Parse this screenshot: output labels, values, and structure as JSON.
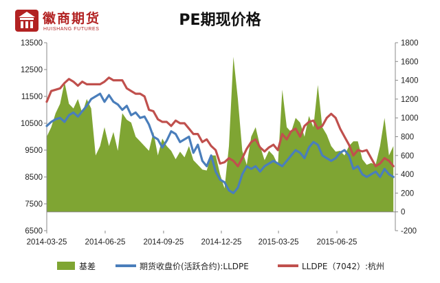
{
  "logo": {
    "cn": "徽商期货",
    "en": "HUISHANG FUTURES"
  },
  "chart_data": {
    "type": "line",
    "title": "PE期现价格",
    "x_tick_labels": [
      "2014-03-25",
      "2014-06-25",
      "2014-09-25",
      "2014-12-25",
      "2015-03-25",
      "2015-06-25"
    ],
    "x_range": [
      "2014-03-25",
      "2015-09-25"
    ],
    "y_left": {
      "min": 6500,
      "max": 13500,
      "ticks": [
        6500,
        7500,
        8500,
        9500,
        10500,
        11500,
        12500,
        13500
      ]
    },
    "y_right": {
      "min": -200,
      "max": 1800,
      "ticks": [
        -200,
        0,
        200,
        400,
        600,
        800,
        1000,
        1200,
        1400,
        1600,
        1800
      ]
    },
    "grid": false,
    "legend_position": "bottom",
    "series": [
      {
        "name": "基差",
        "type": "area",
        "axis": "right",
        "color": "#7fa533",
        "x": [
          "2014-03-25",
          "2014-04-01",
          "2014-04-08",
          "2014-04-15",
          "2014-04-22",
          "2014-04-29",
          "2014-05-06",
          "2014-05-13",
          "2014-05-20",
          "2014-05-27",
          "2014-06-03",
          "2014-06-10",
          "2014-06-17",
          "2014-06-24",
          "2014-07-01",
          "2014-07-08",
          "2014-07-15",
          "2014-07-22",
          "2014-07-29",
          "2014-08-05",
          "2014-08-12",
          "2014-08-19",
          "2014-08-26",
          "2014-09-02",
          "2014-09-09",
          "2014-09-16",
          "2014-09-23",
          "2014-09-30",
          "2014-10-07",
          "2014-10-14",
          "2014-10-21",
          "2014-10-28",
          "2014-11-04",
          "2014-11-11",
          "2014-11-18",
          "2014-11-25",
          "2014-12-02",
          "2014-12-09",
          "2014-12-16",
          "2014-12-23",
          "2014-12-30",
          "2015-01-06",
          "2015-01-13",
          "2015-01-20",
          "2015-01-27",
          "2015-02-03",
          "2015-02-10",
          "2015-02-17",
          "2015-02-24",
          "2015-03-03",
          "2015-03-10",
          "2015-03-17",
          "2015-03-24",
          "2015-03-31",
          "2015-04-07",
          "2015-04-14",
          "2015-04-21",
          "2015-04-28",
          "2015-05-05",
          "2015-05-12",
          "2015-05-19",
          "2015-05-26",
          "2015-06-02",
          "2015-06-09",
          "2015-06-16",
          "2015-06-23",
          "2015-06-30",
          "2015-07-07",
          "2015-07-14",
          "2015-07-21",
          "2015-07-28",
          "2015-08-04",
          "2015-08-11",
          "2015-08-18",
          "2015-08-25",
          "2015-09-01",
          "2015-09-08",
          "2015-09-15",
          "2015-09-22"
        ],
        "values": [
          800,
          900,
          1050,
          1150,
          1380,
          1150,
          1100,
          1200,
          1050,
          1200,
          1100,
          600,
          700,
          900,
          700,
          850,
          650,
          1050,
          980,
          950,
          800,
          750,
          700,
          650,
          850,
          600,
          780,
          700,
          650,
          560,
          640,
          580,
          700,
          550,
          500,
          450,
          440,
          600,
          600,
          400,
          250,
          700,
          1650,
          1200,
          650,
          500,
          800,
          900,
          700,
          550,
          650,
          600,
          500,
          1300,
          900,
          850,
          1000,
          950,
          800,
          1020,
          900,
          1350,
          900,
          820,
          700,
          640,
          650,
          600,
          700,
          750,
          750,
          560,
          500,
          520,
          500,
          700,
          1000,
          600,
          700
        ]
      },
      {
        "name": "期货收盘价(活跃合约):LLDPE",
        "type": "line",
        "axis": "left",
        "color": "#4a7ebb",
        "x": [
          "2014-03-25",
          "2014-04-01",
          "2014-04-08",
          "2014-04-15",
          "2014-04-22",
          "2014-04-29",
          "2014-05-06",
          "2014-05-13",
          "2014-05-20",
          "2014-05-27",
          "2014-06-03",
          "2014-06-10",
          "2014-06-17",
          "2014-06-24",
          "2014-07-01",
          "2014-07-08",
          "2014-07-15",
          "2014-07-22",
          "2014-07-29",
          "2014-08-05",
          "2014-08-12",
          "2014-08-19",
          "2014-08-26",
          "2014-09-02",
          "2014-09-09",
          "2014-09-16",
          "2014-09-23",
          "2014-09-30",
          "2014-10-07",
          "2014-10-14",
          "2014-10-21",
          "2014-10-28",
          "2014-11-04",
          "2014-11-11",
          "2014-11-18",
          "2014-11-25",
          "2014-12-02",
          "2014-12-09",
          "2014-12-16",
          "2014-12-23",
          "2014-12-30",
          "2015-01-06",
          "2015-01-13",
          "2015-01-20",
          "2015-01-27",
          "2015-02-03",
          "2015-02-10",
          "2015-02-17",
          "2015-02-24",
          "2015-03-03",
          "2015-03-10",
          "2015-03-17",
          "2015-03-24",
          "2015-03-31",
          "2015-04-07",
          "2015-04-14",
          "2015-04-21",
          "2015-04-28",
          "2015-05-05",
          "2015-05-12",
          "2015-05-19",
          "2015-05-26",
          "2015-06-02",
          "2015-06-09",
          "2015-06-16",
          "2015-06-23",
          "2015-06-30",
          "2015-07-07",
          "2015-07-14",
          "2015-07-21",
          "2015-07-28",
          "2015-08-04",
          "2015-08-11",
          "2015-08-18",
          "2015-08-25",
          "2015-09-01",
          "2015-09-08",
          "2015-09-15",
          "2015-09-22"
        ],
        "values": [
          10400,
          10550,
          10650,
          10700,
          10550,
          10800,
          10900,
          10750,
          10950,
          11150,
          11400,
          11500,
          11600,
          11300,
          11550,
          11300,
          11200,
          11000,
          11150,
          10800,
          10900,
          10700,
          10750,
          10450,
          10000,
          9900,
          9600,
          9850,
          10200,
          10100,
          9800,
          9900,
          10000,
          9400,
          9700,
          9100,
          8900,
          9300,
          8700,
          8400,
          8300,
          8000,
          7900,
          8100,
          8600,
          8900,
          8800,
          8900,
          8700,
          8900,
          9000,
          9100,
          9000,
          8900,
          9100,
          9300,
          9500,
          9400,
          9200,
          9600,
          9800,
          9700,
          9300,
          9200,
          9100,
          9200,
          9400,
          9500,
          9300,
          8800,
          8900,
          8600,
          8500,
          8600,
          8700,
          8500,
          8800,
          8600,
          8500
        ]
      },
      {
        "name": "LLDPE（7042）:杭州",
        "type": "line",
        "axis": "left",
        "color": "#c0504d",
        "x": [
          "2014-03-25",
          "2014-04-01",
          "2014-04-08",
          "2014-04-15",
          "2014-04-22",
          "2014-04-29",
          "2014-05-06",
          "2014-05-13",
          "2014-05-20",
          "2014-05-27",
          "2014-06-03",
          "2014-06-10",
          "2014-06-17",
          "2014-06-24",
          "2014-07-01",
          "2014-07-08",
          "2014-07-15",
          "2014-07-22",
          "2014-07-29",
          "2014-08-05",
          "2014-08-12",
          "2014-08-19",
          "2014-08-26",
          "2014-09-02",
          "2014-09-09",
          "2014-09-16",
          "2014-09-23",
          "2014-09-30",
          "2014-10-07",
          "2014-10-14",
          "2014-10-21",
          "2014-10-28",
          "2014-11-04",
          "2014-11-11",
          "2014-11-18",
          "2014-11-25",
          "2014-12-02",
          "2014-12-09",
          "2014-12-16",
          "2014-12-23",
          "2014-12-30",
          "2015-01-06",
          "2015-01-13",
          "2015-01-20",
          "2015-01-27",
          "2015-02-03",
          "2015-02-10",
          "2015-02-17",
          "2015-02-24",
          "2015-03-03",
          "2015-03-10",
          "2015-03-17",
          "2015-03-24",
          "2015-03-31",
          "2015-04-07",
          "2015-04-14",
          "2015-04-21",
          "2015-04-28",
          "2015-05-05",
          "2015-05-12",
          "2015-05-19",
          "2015-05-26",
          "2015-06-02",
          "2015-06-09",
          "2015-06-16",
          "2015-06-23",
          "2015-06-30",
          "2015-07-07",
          "2015-07-14",
          "2015-07-21",
          "2015-07-28",
          "2015-08-04",
          "2015-08-11",
          "2015-08-18",
          "2015-08-25",
          "2015-09-01",
          "2015-09-08",
          "2015-09-15",
          "2015-09-22"
        ],
        "values": [
          11300,
          11700,
          11750,
          11800,
          12000,
          12150,
          12050,
          11900,
          12050,
          11950,
          11950,
          11950,
          11950,
          12050,
          12200,
          12100,
          12100,
          12100,
          11800,
          11700,
          11600,
          11600,
          11500,
          11000,
          10950,
          10650,
          10550,
          10550,
          10400,
          10600,
          10500,
          10500,
          10300,
          10100,
          10100,
          9800,
          9900,
          9650,
          9500,
          9000,
          9050,
          9200,
          9100,
          8900,
          9200,
          9550,
          9800,
          9900,
          9600,
          9450,
          9600,
          9700,
          9500,
          10100,
          9900,
          10200,
          10300,
          10000,
          10400,
          10550,
          10600,
          10300,
          10400,
          10700,
          10850,
          10700,
          10300,
          10000,
          9700,
          9300,
          9500,
          9450,
          9500,
          9200,
          8900,
          9000,
          9200,
          9100,
          8900
        ]
      }
    ]
  }
}
